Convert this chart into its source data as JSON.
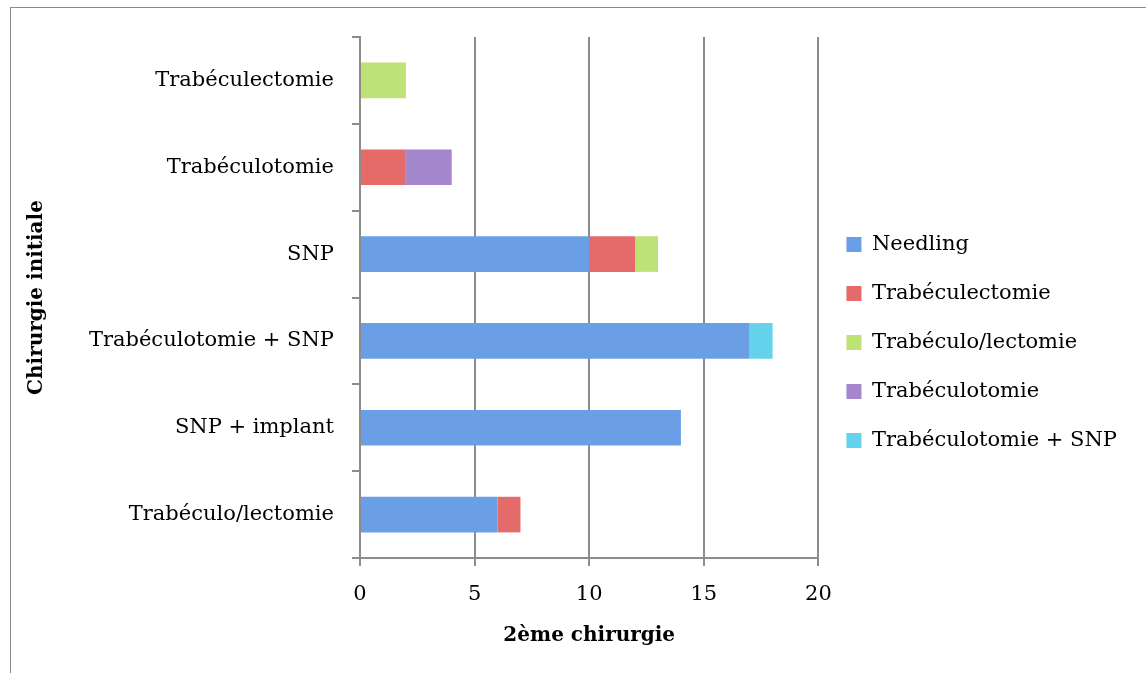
{
  "chart_data": {
    "type": "bar",
    "orientation": "horizontal",
    "stacked": true,
    "categories": [
      "Trabéculectomie",
      "Trabéculotomie",
      "SNP",
      "Trabéculotomie + SNP",
      "SNP + implant",
      "Trabéculo/lectomie"
    ],
    "series": [
      {
        "name": "Needling",
        "color": "#6a9fe6",
        "values": [
          null,
          null,
          10,
          17,
          14,
          6
        ]
      },
      {
        "name": "Trabéculectomie",
        "color": "#e56b6b",
        "values": [
          null,
          2,
          2,
          null,
          null,
          1
        ]
      },
      {
        "name": "Trabéculo/lectomie",
        "color": "#bde275",
        "values": [
          2,
          null,
          1,
          null,
          null,
          null
        ]
      },
      {
        "name": "Trabéculotomie",
        "color": "#a386cb",
        "values": [
          null,
          2,
          null,
          null,
          null,
          null
        ]
      },
      {
        "name": "Trabéculotomie + SNP",
        "color": "#63d2ea",
        "values": [
          null,
          null,
          null,
          1,
          null,
          null
        ]
      }
    ],
    "xlim": [
      0,
      20
    ],
    "xticks": [
      0,
      5,
      10,
      15,
      20
    ],
    "xlabel": "2ème chirurgie",
    "ylabel": "Chirurgie initiale",
    "grid": "x",
    "legend": "right"
  }
}
